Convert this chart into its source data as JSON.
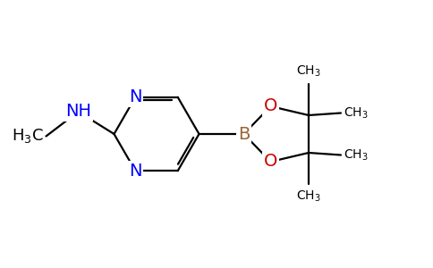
{
  "background_color": "#ffffff",
  "atom_colors": {
    "N": "#0000ff",
    "O": "#cc0000",
    "B": "#996633",
    "C": "#000000"
  },
  "font_size_atoms": 14,
  "font_size_ch3": 10,
  "line_color": "#000000",
  "line_width": 1.6
}
